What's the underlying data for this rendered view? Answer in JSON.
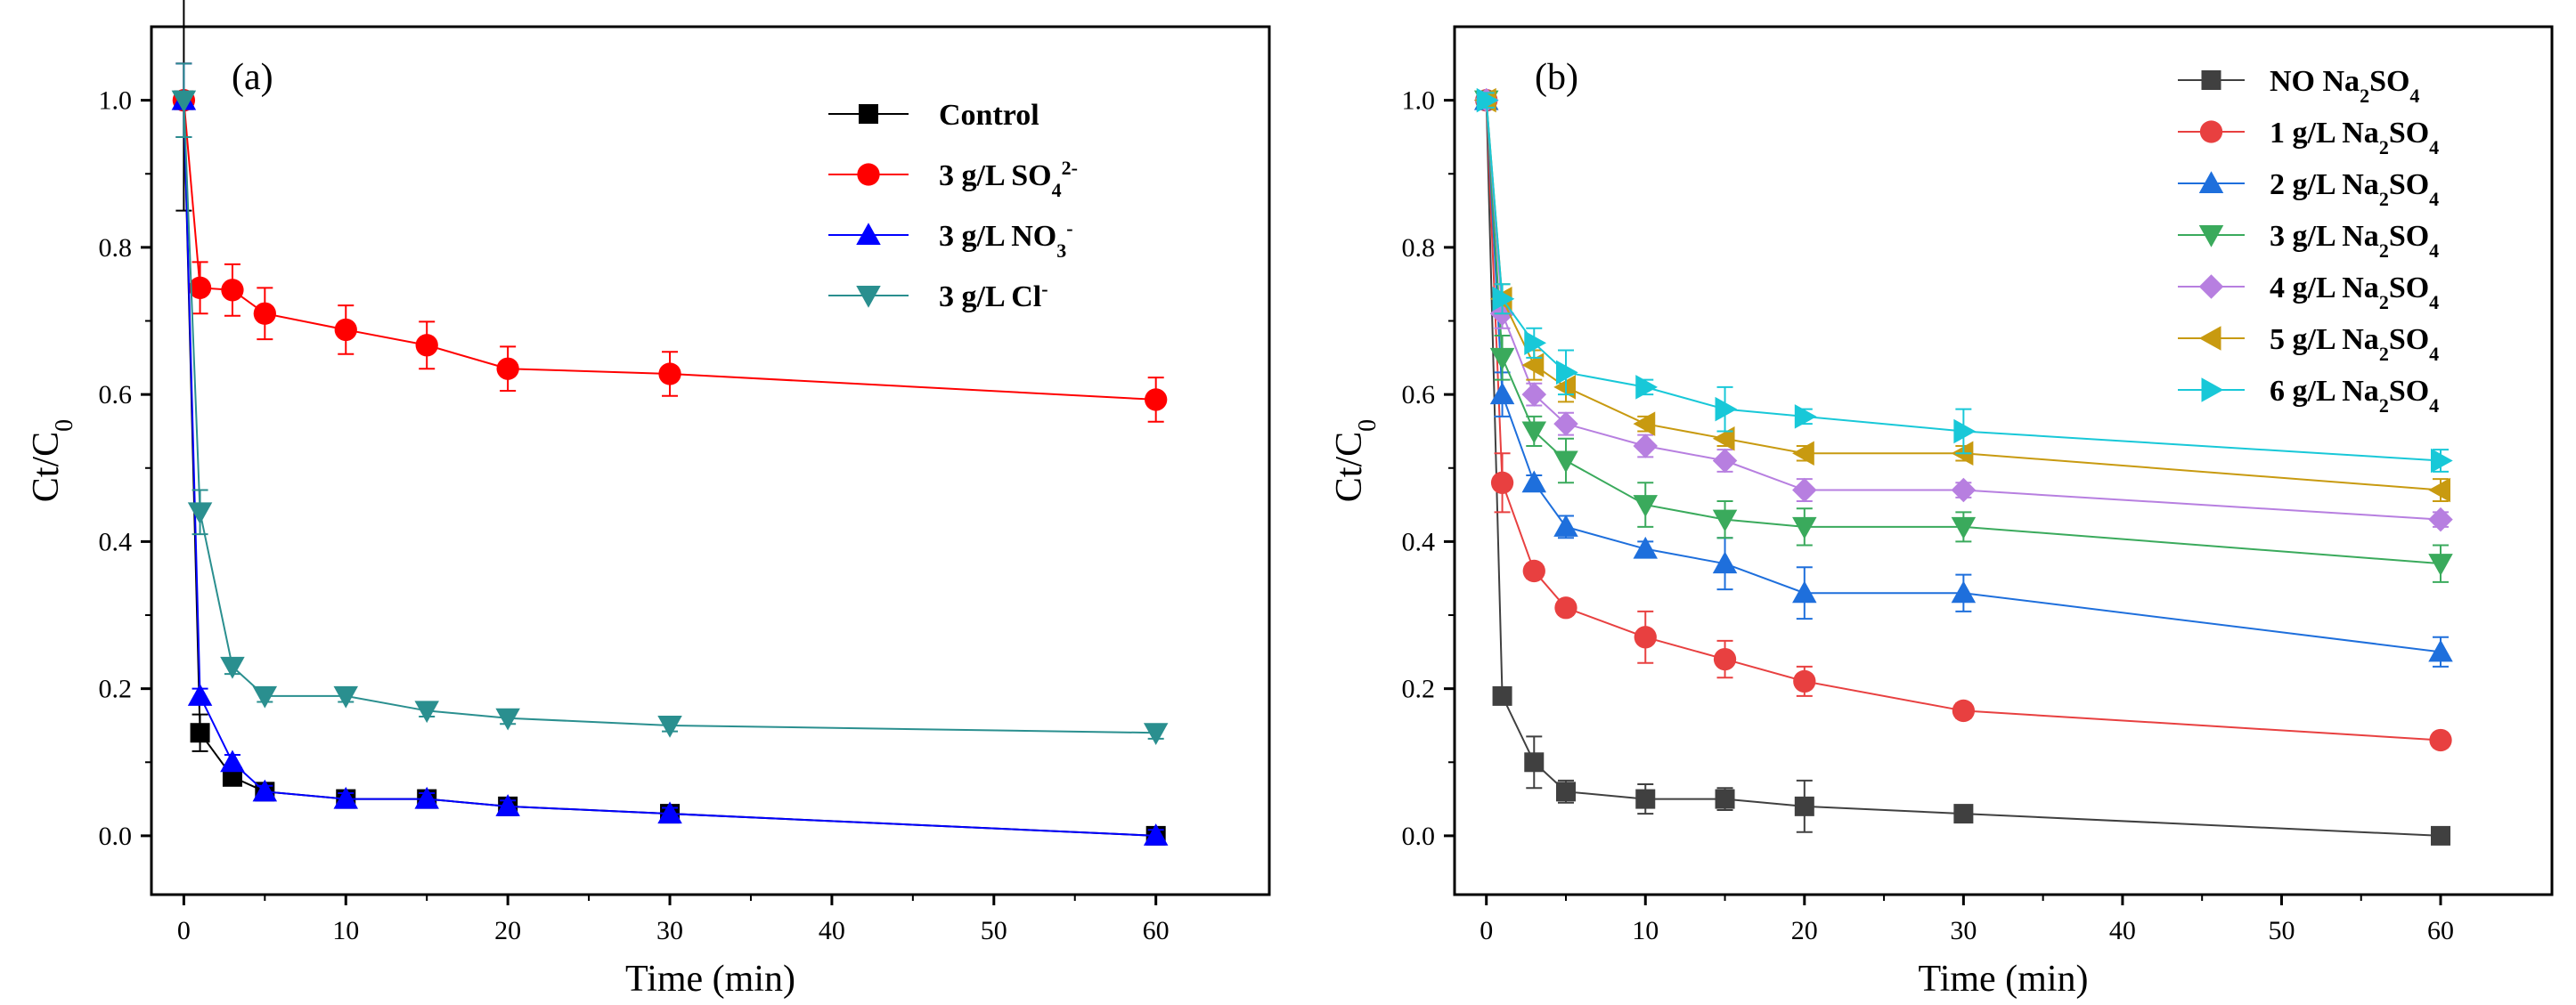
{
  "chart_data": [
    {
      "type": "line",
      "panel_label": "(a)",
      "xlabel": "Time (min)",
      "ylabel": "Ct/C",
      "ylabel_sub": "0",
      "xlim": [
        -2,
        67
      ],
      "ylim": [
        -0.08,
        1.1
      ],
      "xticks": [
        0,
        10,
        20,
        30,
        40,
        50,
        60
      ],
      "xtick_labels": [
        "0",
        "10",
        "20",
        "30",
        "40",
        "50",
        "60"
      ],
      "yticks": [
        0.0,
        0.2,
        0.4,
        0.6,
        0.8,
        1.0
      ],
      "ytick_labels": [
        "0.0",
        "0.2",
        "0.4",
        "0.6",
        "0.8",
        "1.0"
      ],
      "legend_position": "top-right",
      "x": [
        0,
        1,
        3,
        5,
        10,
        15,
        20,
        30,
        60
      ],
      "series": [
        {
          "name": "Control",
          "legend": {
            "main": "Control",
            "sub": "",
            "sup": "",
            "tail": ""
          },
          "color": "#000000",
          "marker": "square",
          "values": [
            1.0,
            0.14,
            0.08,
            0.06,
            0.05,
            0.05,
            0.04,
            0.03,
            0.0
          ],
          "errors": [
            0.15,
            0.025,
            0.01,
            0.008,
            0.008,
            0.008,
            0.008,
            0.008,
            0.008
          ]
        },
        {
          "name": "3 g/L SO4 2-",
          "legend": {
            "main": "3 g/L  SO",
            "sub": "4",
            "sup": "2-",
            "tail": ""
          },
          "color": "#ff0000",
          "marker": "circle",
          "values": [
            1.0,
            0.745,
            0.742,
            0.71,
            0.688,
            0.667,
            0.635,
            0.628,
            0.593
          ],
          "errors": [
            0.05,
            0.035,
            0.035,
            0.035,
            0.033,
            0.032,
            0.03,
            0.03,
            0.03
          ]
        },
        {
          "name": "3 g/L NO3 -",
          "legend": {
            "main": "3 g/L  NO",
            "sub": "3",
            "sup": "-",
            "tail": ""
          },
          "color": "#0000ff",
          "marker": "triangle-up",
          "values": [
            1.0,
            0.19,
            0.1,
            0.06,
            0.05,
            0.05,
            0.04,
            0.03,
            0.0
          ],
          "errors": [
            0.05,
            0.01,
            0.01,
            0.008,
            0.008,
            0.008,
            0.008,
            0.008,
            0.008
          ]
        },
        {
          "name": "3 g/L Cl-",
          "legend": {
            "main": "3 g/L  Cl",
            "sub": "",
            "sup": "-",
            "tail": ""
          },
          "color": "#2a8f8f",
          "marker": "triangle-down",
          "values": [
            1.0,
            0.44,
            0.23,
            0.19,
            0.19,
            0.17,
            0.16,
            0.15,
            0.14
          ],
          "errors": [
            0.05,
            0.03,
            0.01,
            0.008,
            0.008,
            0.008,
            0.008,
            0.008,
            0.008
          ]
        }
      ]
    },
    {
      "type": "line",
      "panel_label": "(b)",
      "xlabel": "Time (min)",
      "ylabel": "Ct/C",
      "ylabel_sub": "0",
      "xlim": [
        -2,
        67
      ],
      "ylim": [
        -0.08,
        1.1
      ],
      "xticks": [
        0,
        10,
        20,
        30,
        40,
        50,
        60
      ],
      "xtick_labels": [
        "0",
        "10",
        "20",
        "30",
        "40",
        "50",
        "60"
      ],
      "yticks": [
        0.0,
        0.2,
        0.4,
        0.6,
        0.8,
        1.0
      ],
      "ytick_labels": [
        "0.0",
        "0.2",
        "0.4",
        "0.6",
        "0.8",
        "1.0"
      ],
      "legend_position": "top-right",
      "x": [
        0,
        1,
        3,
        5,
        10,
        15,
        20,
        30,
        60
      ],
      "series": [
        {
          "name": "NO Na2SO4",
          "legend": {
            "main": "NO   Na",
            "sub": "2",
            "sup": "",
            "tail": "SO",
            "sub2": "4"
          },
          "color": "#404040",
          "marker": "square",
          "values": [
            1.0,
            0.19,
            0.1,
            0.06,
            0.05,
            0.05,
            0.04,
            0.03,
            0.0
          ],
          "errors": [
            0.01,
            0.01,
            0.035,
            0.015,
            0.02,
            0.015,
            0.035,
            0.008,
            0.008
          ]
        },
        {
          "name": "1 g/L Na2SO4",
          "legend": {
            "main": "1 g/L Na",
            "sub": "2",
            "sup": "",
            "tail": "SO",
            "sub2": "4"
          },
          "color": "#e84040",
          "marker": "circle",
          "values": [
            1.0,
            0.48,
            0.36,
            0.31,
            0.27,
            0.24,
            0.21,
            0.17,
            0.13
          ],
          "errors": [
            0.01,
            0.04,
            0.01,
            0.01,
            0.035,
            0.025,
            0.02,
            0.01,
            0.01
          ]
        },
        {
          "name": "2 g/L Na2SO4",
          "legend": {
            "main": "2 g/L Na",
            "sub": "2",
            "sup": "",
            "tail": "SO",
            "sub2": "4"
          },
          "color": "#1e6fdc",
          "marker": "triangle-up",
          "values": [
            1.0,
            0.6,
            0.48,
            0.42,
            0.39,
            0.37,
            0.33,
            0.33,
            0.25
          ],
          "errors": [
            0.01,
            0.03,
            0.01,
            0.015,
            0.01,
            0.035,
            0.035,
            0.025,
            0.02
          ]
        },
        {
          "name": "3 g/L Na2SO4",
          "legend": {
            "main": "3 g/L Na",
            "sub": "2",
            "sup": "",
            "tail": "SO",
            "sub2": "4"
          },
          "color": "#3aaa5c",
          "marker": "triangle-down",
          "values": [
            1.0,
            0.65,
            0.55,
            0.51,
            0.45,
            0.43,
            0.42,
            0.42,
            0.37
          ],
          "errors": [
            0.01,
            0.03,
            0.02,
            0.03,
            0.03,
            0.025,
            0.025,
            0.02,
            0.025
          ]
        },
        {
          "name": "4 g/L Na2SO4",
          "legend": {
            "main": "4 g/L Na",
            "sub": "2",
            "sup": "",
            "tail": "SO",
            "sub2": "4"
          },
          "color": "#b77fe0",
          "marker": "diamond",
          "values": [
            1.0,
            0.71,
            0.6,
            0.56,
            0.53,
            0.51,
            0.47,
            0.47,
            0.43
          ],
          "errors": [
            0.01,
            0.02,
            0.015,
            0.015,
            0.015,
            0.015,
            0.015,
            0.01,
            0.01
          ]
        },
        {
          "name": "5 g/L Na2SO4",
          "legend": {
            "main": "5 g/L Na",
            "sub": "2",
            "sup": "",
            "tail": "SO",
            "sub2": "4"
          },
          "color": "#c89a10",
          "marker": "triangle-left",
          "values": [
            1.0,
            0.73,
            0.64,
            0.61,
            0.56,
            0.54,
            0.52,
            0.52,
            0.47
          ],
          "errors": [
            0.01,
            0.02,
            0.02,
            0.02,
            0.01,
            0.01,
            0.01,
            0.01,
            0.015
          ]
        },
        {
          "name": "6 g/L Na2SO4",
          "legend": {
            "main": "6 g/L Na",
            "sub": "2",
            "sup": "",
            "tail": "SO",
            "sub2": "4"
          },
          "color": "#18c8d8",
          "marker": "triangle-right",
          "values": [
            1.0,
            0.73,
            0.67,
            0.63,
            0.61,
            0.58,
            0.57,
            0.55,
            0.51
          ],
          "errors": [
            0.01,
            0.02,
            0.02,
            0.03,
            0.01,
            0.03,
            0.01,
            0.03,
            0.015
          ]
        }
      ]
    }
  ]
}
